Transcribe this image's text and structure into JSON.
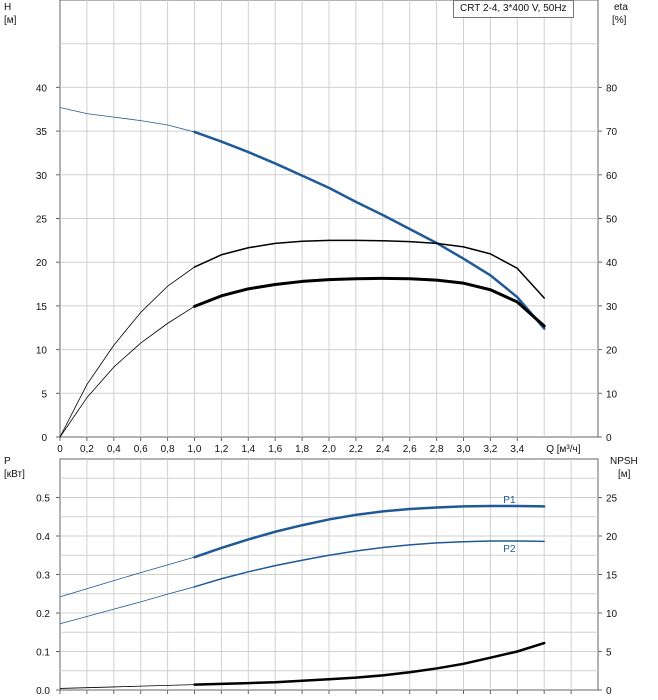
{
  "pump_label": "CRT 2-4, 3*400 V, 50Hz",
  "chart_data": [
    {
      "type": "line",
      "xlabel": "Q [м³/ч]",
      "ylabel_left": [
        "H",
        "[м]"
      ],
      "ylabel_right": [
        "eta",
        "[%]"
      ],
      "x_range": [
        0,
        4.0
      ],
      "x_ticks": [
        "0",
        "0,2",
        "0,4",
        "0,6",
        "0,8",
        "1,0",
        "1,2",
        "1,4",
        "1,6",
        "1,8",
        "2,0",
        "2,2",
        "2,4",
        "2,6",
        "2,8",
        "3,0",
        "3,2",
        "3,4"
      ],
      "y_left_ticks": [
        "0",
        "5",
        "10",
        "15",
        "20",
        "25",
        "30",
        "35",
        "40"
      ],
      "y_right_ticks": [
        "0",
        "10",
        "20",
        "30",
        "40",
        "50",
        "60",
        "70",
        "80"
      ],
      "ylim_left": [
        0,
        50
      ],
      "ylim_right": [
        0,
        100
      ],
      "grid": true,
      "series": [
        {
          "axis": "left",
          "color": "#1f5a96",
          "x": [
            0,
            0.2,
            0.4,
            0.6,
            0.8,
            1.0,
            1.2,
            1.4,
            1.6,
            1.8,
            2.0,
            2.2,
            2.4,
            2.6,
            2.8,
            3.0,
            3.2,
            3.4,
            3.6
          ],
          "y": [
            37.7,
            37.0,
            36.6,
            36.2,
            35.7,
            34.9,
            33.8,
            32.6,
            31.3,
            29.9,
            28.5,
            26.9,
            25.4,
            23.8,
            22.2,
            20.4,
            18.5,
            16.0,
            12.4
          ]
        },
        {
          "axis": "right",
          "color": "#000000",
          "x": [
            0,
            0.2,
            0.4,
            0.6,
            0.8,
            1.0,
            1.2,
            1.4,
            1.6,
            1.8,
            2.0,
            2.2,
            2.4,
            2.6,
            2.8,
            3.0,
            3.2,
            3.4,
            3.6
          ],
          "y": [
            0,
            12,
            21,
            28.5,
            34.5,
            38.9,
            41.7,
            43.3,
            44.3,
            44.8,
            45.0,
            45.0,
            44.9,
            44.7,
            44.3,
            43.5,
            41.9,
            38.6,
            31.8
          ]
        },
        {
          "axis": "right",
          "color": "#000000",
          "x": [
            0,
            0.2,
            0.4,
            0.6,
            0.8,
            1.0,
            1.2,
            1.4,
            1.6,
            1.8,
            2.0,
            2.2,
            2.4,
            2.6,
            2.8,
            3.0,
            3.2,
            3.4,
            3.6
          ],
          "y": [
            0,
            9,
            16,
            21.5,
            26,
            29.9,
            32.3,
            33.9,
            34.9,
            35.6,
            36.0,
            36.2,
            36.3,
            36.2,
            35.9,
            35.2,
            33.7,
            30.9,
            25.4
          ]
        }
      ]
    },
    {
      "type": "line",
      "ylabel_left": [
        "P",
        "[кВт]"
      ],
      "ylabel_right": [
        "NPSH",
        "[м]"
      ],
      "x_range": [
        0,
        4.0
      ],
      "y_left_ticks": [
        "0.0",
        "0.1",
        "0.2",
        "0.3",
        "0.4",
        "0.5"
      ],
      "y_right_ticks": [
        "0",
        "5",
        "10",
        "15",
        "20",
        "25"
      ],
      "ylim_left": [
        0,
        0.6
      ],
      "ylim_right": [
        0,
        30
      ],
      "grid": true,
      "series": [
        {
          "name": "P1",
          "axis": "left",
          "color": "#1f5a96",
          "x": [
            0,
            0.2,
            0.4,
            0.6,
            0.8,
            1.0,
            1.2,
            1.4,
            1.6,
            1.8,
            2.0,
            2.2,
            2.4,
            2.6,
            2.8,
            3.0,
            3.2,
            3.4,
            3.6
          ],
          "y": [
            0.242,
            0.263,
            0.284,
            0.305,
            0.325,
            0.345,
            0.369,
            0.391,
            0.411,
            0.428,
            0.443,
            0.455,
            0.464,
            0.47,
            0.474,
            0.477,
            0.478,
            0.478,
            0.477
          ]
        },
        {
          "name": "P2",
          "axis": "left",
          "color": "#1f5a96",
          "x": [
            0,
            0.2,
            0.4,
            0.6,
            0.8,
            1.0,
            1.2,
            1.4,
            1.6,
            1.8,
            2.0,
            2.2,
            2.4,
            2.6,
            2.8,
            3.0,
            3.2,
            3.4,
            3.6
          ],
          "y": [
            0.172,
            0.191,
            0.21,
            0.229,
            0.249,
            0.268,
            0.289,
            0.307,
            0.323,
            0.337,
            0.35,
            0.361,
            0.37,
            0.377,
            0.382,
            0.385,
            0.387,
            0.387,
            0.386
          ]
        },
        {
          "axis": "right",
          "color": "#000000",
          "x": [
            0,
            0.2,
            0.4,
            0.6,
            0.8,
            1.0,
            1.2,
            1.4,
            1.6,
            1.8,
            2.0,
            2.2,
            2.4,
            2.6,
            2.8,
            3.0,
            3.2,
            3.4,
            3.6
          ],
          "y": [
            0.2,
            0.3,
            0.4,
            0.5,
            0.6,
            0.7,
            0.8,
            0.9,
            1.0,
            1.2,
            1.4,
            1.6,
            1.9,
            2.3,
            2.8,
            3.4,
            4.2,
            5.0,
            6.1
          ]
        }
      ]
    }
  ]
}
